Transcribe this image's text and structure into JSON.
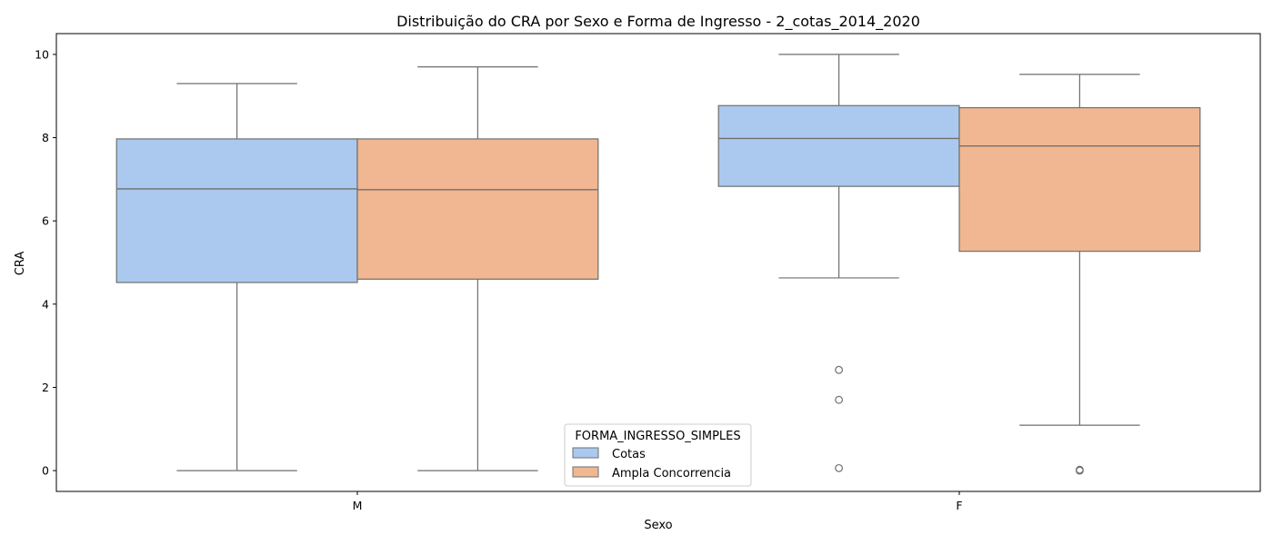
{
  "chart_data": {
    "type": "boxplot",
    "title": "Distribuição do CRA por Sexo e Forma de Ingresso - 2_cotas_2014_2020",
    "xlabel": "Sexo",
    "ylabel": "CRA",
    "categories": [
      "M",
      "F"
    ],
    "ylim": [
      -0.5,
      10.5
    ],
    "yticks": [
      0,
      2,
      4,
      6,
      8,
      10
    ],
    "grid": false,
    "legend": {
      "title": "FORMA_INGRESSO_SIMPLES",
      "placement": "lower-center",
      "entries": [
        "Cotas",
        "Ampla Concorrencia"
      ]
    },
    "series": [
      {
        "name": "Cotas",
        "color": "#abc9ee",
        "boxes": [
          {
            "category": "M",
            "whisker_low": 0,
            "q1": 4.52,
            "median": 6.77,
            "q3": 7.97,
            "whisker_high": 9.3,
            "outliers": []
          },
          {
            "category": "F",
            "whisker_low": 4.63,
            "q1": 6.83,
            "median": 7.98,
            "q3": 8.77,
            "whisker_high": 10.0,
            "outliers": [
              2.42,
              1.7,
              0.06
            ]
          }
        ]
      },
      {
        "name": "Ampla Concorrencia",
        "color": "#f0b792",
        "boxes": [
          {
            "category": "M",
            "whisker_low": 0,
            "q1": 4.6,
            "median": 6.75,
            "q3": 7.97,
            "whisker_high": 9.7,
            "outliers": []
          },
          {
            "category": "F",
            "whisker_low": 1.09,
            "q1": 5.27,
            "median": 7.8,
            "q3": 8.72,
            "whisker_high": 9.52,
            "outliers": [
              0,
              0.02
            ]
          }
        ]
      }
    ]
  }
}
